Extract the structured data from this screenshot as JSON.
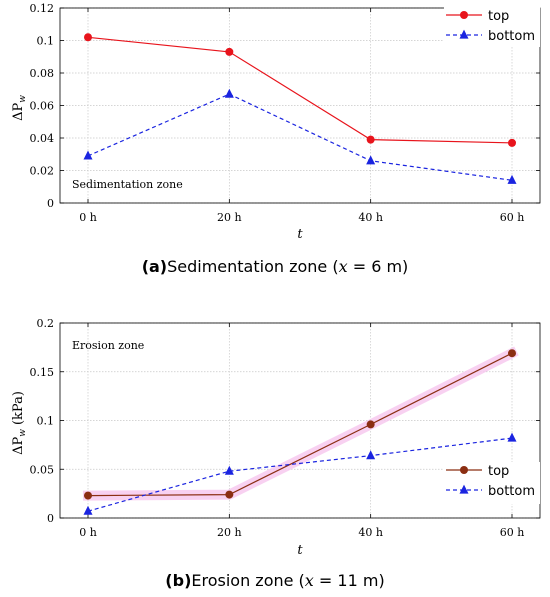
{
  "chart_data": [
    {
      "type": "line",
      "panel": "a",
      "categories": [
        "0 h",
        "20 h",
        "40 h",
        "60 h"
      ],
      "ylim": [
        0,
        0.12
      ],
      "yticks": [
        0,
        0.02,
        0.04,
        0.06,
        0.08,
        0.1,
        0.12
      ],
      "ytick_labels": [
        "0",
        "0.02",
        "0.04",
        "0.06",
        "0.08",
        "0.1",
        "0.12"
      ],
      "xlabel": "t",
      "ylabel": "ΔP",
      "ylabel_sub": "w",
      "ylabel_unit": "",
      "annotation": "Sedimentation zone",
      "legend_position": "top-right",
      "grid": true,
      "series": [
        {
          "name": "top",
          "values": [
            0.102,
            0.093,
            0.039,
            0.037
          ],
          "color": "#e8141c",
          "marker": "circle",
          "dash": "none",
          "highlight": false
        },
        {
          "name": "bottom",
          "values": [
            0.029,
            0.067,
            0.026,
            0.014
          ],
          "color": "#1a24e0",
          "marker": "triangle",
          "dash": "dashed",
          "highlight": false
        }
      ],
      "caption": {
        "label": "(a)",
        "text_before": "Sedimentation zone (",
        "var": "x",
        "text_after": " = 6 m)"
      }
    },
    {
      "type": "line",
      "panel": "b",
      "categories": [
        "0 h",
        "20 h",
        "40 h",
        "60 h"
      ],
      "ylim": [
        0,
        0.2
      ],
      "yticks": [
        0,
        0.05,
        0.1,
        0.15,
        0.2
      ],
      "ytick_labels": [
        "0",
        "0.05",
        "0.1",
        "0.15",
        "0.2"
      ],
      "xlabel": "t",
      "ylabel": "ΔP",
      "ylabel_sub": "w",
      "ylabel_unit": "(kPa)",
      "annotation": "Erosion zone",
      "legend_position": "bottom-right",
      "grid": true,
      "series": [
        {
          "name": "top",
          "values": [
            0.023,
            0.024,
            0.096,
            0.169
          ],
          "color": "#8b2e12",
          "marker": "circle",
          "dash": "none",
          "highlight": true
        },
        {
          "name": "bottom",
          "values": [
            0.007,
            0.048,
            0.064,
            0.082
          ],
          "color": "#1a24e0",
          "marker": "triangle",
          "dash": "dashed",
          "highlight": false
        }
      ],
      "caption": {
        "label": "(b)",
        "text_before": "Erosion zone (",
        "var": "x",
        "text_after": " = 11 m)"
      }
    }
  ],
  "colors": {
    "highlight": "#f7c9ef",
    "grid": "#c8c8c8",
    "axis": "#000000"
  }
}
